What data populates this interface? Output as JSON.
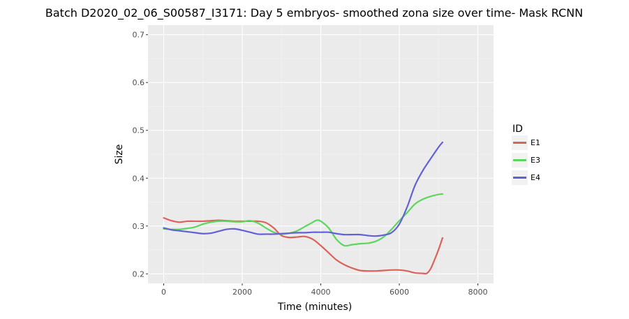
{
  "chart_data": {
    "type": "line",
    "title": "Batch D2020_02_06_S00587_I3171: Day 5 embryos- smoothed zona size over time- Mask RCNN",
    "xlabel": "Time (minutes)",
    "ylabel": "Size",
    "xlim": [
      -400,
      8400
    ],
    "ylim": [
      0.18,
      0.72
    ],
    "x_ticks": [
      0,
      2000,
      4000,
      6000,
      8000
    ],
    "y_ticks": [
      0.2,
      0.3,
      0.4,
      0.5,
      0.6,
      0.7
    ],
    "x_tick_labels": [
      "0",
      "2000",
      "4000",
      "6000",
      "8000"
    ],
    "y_tick_labels": [
      "0.2",
      "0.3",
      "0.4",
      "0.5",
      "0.6",
      "0.7"
    ],
    "grid": true,
    "legend": {
      "title": "ID",
      "position": "right"
    },
    "series": [
      {
        "name": "E1",
        "color": "#d9635a",
        "points": [
          [
            0,
            0.317
          ],
          [
            200,
            0.311
          ],
          [
            400,
            0.308
          ],
          [
            600,
            0.31
          ],
          [
            800,
            0.31
          ],
          [
            1000,
            0.31
          ],
          [
            1200,
            0.311
          ],
          [
            1400,
            0.312
          ],
          [
            1600,
            0.311
          ],
          [
            1800,
            0.31
          ],
          [
            2000,
            0.31
          ],
          [
            2200,
            0.31
          ],
          [
            2400,
            0.31
          ],
          [
            2600,
            0.307
          ],
          [
            2800,
            0.296
          ],
          [
            3000,
            0.28
          ],
          [
            3200,
            0.276
          ],
          [
            3400,
            0.277
          ],
          [
            3600,
            0.278
          ],
          [
            3800,
            0.272
          ],
          [
            4000,
            0.259
          ],
          [
            4200,
            0.244
          ],
          [
            4400,
            0.229
          ],
          [
            4600,
            0.219
          ],
          [
            4800,
            0.212
          ],
          [
            5000,
            0.207
          ],
          [
            5200,
            0.206
          ],
          [
            5400,
            0.206
          ],
          [
            5600,
            0.207
          ],
          [
            5800,
            0.208
          ],
          [
            6000,
            0.208
          ],
          [
            6200,
            0.206
          ],
          [
            6400,
            0.202
          ],
          [
            6600,
            0.201
          ],
          [
            6700,
            0.201
          ],
          [
            6800,
            0.211
          ],
          [
            6900,
            0.23
          ],
          [
            7000,
            0.251
          ],
          [
            7100,
            0.275
          ]
        ]
      },
      {
        "name": "E3",
        "color": "#5cd65c",
        "points": [
          [
            0,
            0.294
          ],
          [
            200,
            0.293
          ],
          [
            400,
            0.293
          ],
          [
            600,
            0.295
          ],
          [
            800,
            0.298
          ],
          [
            1000,
            0.304
          ],
          [
            1200,
            0.308
          ],
          [
            1400,
            0.31
          ],
          [
            1600,
            0.31
          ],
          [
            1800,
            0.309
          ],
          [
            2000,
            0.309
          ],
          [
            2200,
            0.311
          ],
          [
            2400,
            0.306
          ],
          [
            2600,
            0.296
          ],
          [
            2800,
            0.287
          ],
          [
            3000,
            0.283
          ],
          [
            3200,
            0.285
          ],
          [
            3400,
            0.29
          ],
          [
            3600,
            0.299
          ],
          [
            3800,
            0.308
          ],
          [
            3900,
            0.312
          ],
          [
            4000,
            0.31
          ],
          [
            4200,
            0.296
          ],
          [
            4400,
            0.272
          ],
          [
            4600,
            0.259
          ],
          [
            4800,
            0.261
          ],
          [
            5000,
            0.263
          ],
          [
            5200,
            0.264
          ],
          [
            5400,
            0.268
          ],
          [
            5600,
            0.277
          ],
          [
            5800,
            0.293
          ],
          [
            6000,
            0.311
          ],
          [
            6200,
            0.328
          ],
          [
            6400,
            0.346
          ],
          [
            6600,
            0.356
          ],
          [
            6800,
            0.362
          ],
          [
            7000,
            0.366
          ],
          [
            7100,
            0.367
          ]
        ]
      },
      {
        "name": "E4",
        "color": "#6161d6",
        "points": [
          [
            0,
            0.296
          ],
          [
            200,
            0.292
          ],
          [
            400,
            0.29
          ],
          [
            600,
            0.288
          ],
          [
            800,
            0.286
          ],
          [
            1000,
            0.284
          ],
          [
            1200,
            0.285
          ],
          [
            1400,
            0.289
          ],
          [
            1600,
            0.293
          ],
          [
            1800,
            0.294
          ],
          [
            2000,
            0.291
          ],
          [
            2200,
            0.287
          ],
          [
            2400,
            0.283
          ],
          [
            2600,
            0.283
          ],
          [
            2800,
            0.283
          ],
          [
            3000,
            0.284
          ],
          [
            3200,
            0.285
          ],
          [
            3400,
            0.286
          ],
          [
            3600,
            0.286
          ],
          [
            3800,
            0.287
          ],
          [
            4000,
            0.287
          ],
          [
            4200,
            0.287
          ],
          [
            4400,
            0.284
          ],
          [
            4600,
            0.282
          ],
          [
            4800,
            0.282
          ],
          [
            5000,
            0.282
          ],
          [
            5200,
            0.28
          ],
          [
            5400,
            0.279
          ],
          [
            5600,
            0.281
          ],
          [
            5800,
            0.286
          ],
          [
            6000,
            0.304
          ],
          [
            6200,
            0.34
          ],
          [
            6400,
            0.385
          ],
          [
            6600,
            0.416
          ],
          [
            6800,
            0.441
          ],
          [
            7000,
            0.465
          ],
          [
            7100,
            0.475
          ]
        ]
      }
    ]
  }
}
